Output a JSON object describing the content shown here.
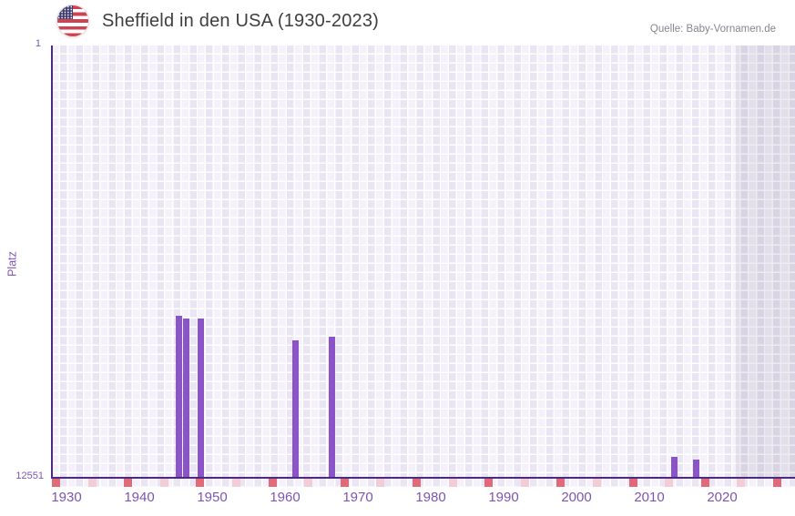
{
  "header": {
    "title": "Sheffield in den USA (1930-2023)",
    "flag_icon": "us-flag-icon",
    "source": "Quelle: Baby-Vornamen.de"
  },
  "chart_data": {
    "type": "bar",
    "title": "Sheffield in den USA (1930-2023)",
    "xlabel": "",
    "ylabel": "Platz",
    "x_base_year": 1930,
    "x_ticks": [
      "1930",
      "1940",
      "1950",
      "1960",
      "1970",
      "1980",
      "1990",
      "2000",
      "2010",
      "2020"
    ],
    "x_range": [
      1928,
      2030
    ],
    "y_axis": {
      "label_top": "1",
      "label_bottom": "12551",
      "min": 1,
      "max": 12551,
      "inverted": true
    },
    "series": [
      {
        "name": "Platz",
        "points": [
          {
            "year": 1945,
            "rank": 7880
          },
          {
            "year": 1946,
            "rank": 7960
          },
          {
            "year": 1948,
            "rank": 7960
          },
          {
            "year": 1961,
            "rank": 8600
          },
          {
            "year": 1966,
            "rank": 8490
          },
          {
            "year": 2013,
            "rank": 11970
          },
          {
            "year": 2016,
            "rank": 12070
          }
        ]
      }
    ],
    "legend": false,
    "grid": true,
    "no_data_band_start_year": 2022
  },
  "axis_marks": {
    "count": 21,
    "pattern": [
      "dark",
      "light"
    ]
  },
  "colors": {
    "bar": "#8b55c7",
    "axis_line": "#4e2a7e",
    "axis_text": "#7c55b1",
    "title_text": "#3f3f40",
    "source_text": "#87858f",
    "plot_bg": "#e9e5f3",
    "plot_bg_alt": "#f4f1fb",
    "future_band": "rgba(120,112,140,0.14)",
    "axis_mark_dark": "#e06a78",
    "axis_mark_light": "#f3ccd5",
    "flag_red": "#cf4251",
    "flag_blue": "#3e3d73"
  }
}
